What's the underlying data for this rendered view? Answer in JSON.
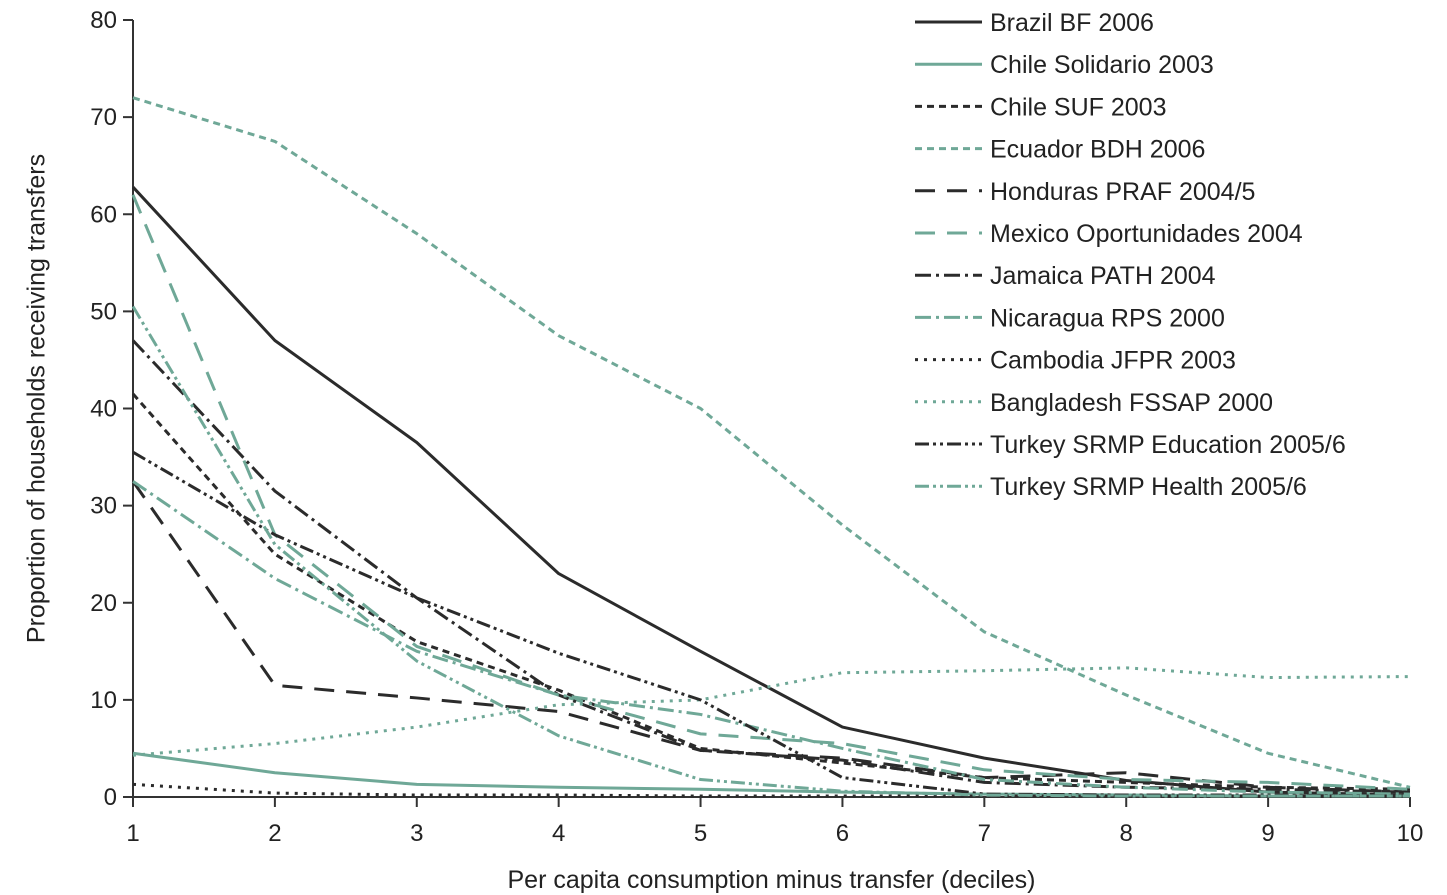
{
  "chart_data": {
    "type": "line",
    "xlabel": "Per capita consumption minus transfer (deciles)",
    "ylabel": "Proportion of households receiving transfers",
    "x": [
      1,
      2,
      3,
      4,
      5,
      6,
      7,
      8,
      9,
      10
    ],
    "xlim": [
      1,
      10
    ],
    "ylim": [
      0,
      80
    ],
    "yticks": [
      0,
      10,
      20,
      30,
      40,
      50,
      60,
      70,
      80
    ],
    "grid": false,
    "legend_position": "top-right",
    "series": [
      {
        "name": "Brazil BF 2006",
        "color": "#2b2b2b",
        "dash": "solid",
        "values": [
          62.8,
          47,
          36.5,
          23,
          15,
          7.2,
          4,
          1.7,
          0.5,
          0.2
        ]
      },
      {
        "name": "Chile Solidario 2003",
        "color": "#6fa897",
        "dash": "solid",
        "values": [
          4.5,
          2.5,
          1.3,
          1.0,
          0.8,
          0.5,
          0.3,
          0.2,
          0.1,
          0.1
        ]
      },
      {
        "name": "Chile SUF 2003",
        "color": "#2b2b2b",
        "dash": "shortdash",
        "values": [
          41.5,
          25,
          16,
          11,
          5,
          3.5,
          2,
          1.5,
          1.0,
          0.8
        ]
      },
      {
        "name": "Ecuador BDH 2006",
        "color": "#6fa897",
        "dash": "shortdash",
        "values": [
          72,
          67.5,
          58,
          47.5,
          40,
          28,
          17,
          10.5,
          4.5,
          1.0
        ]
      },
      {
        "name": "Honduras PRAF 2004/5",
        "color": "#2b2b2b",
        "dash": "longdash",
        "values": [
          32.5,
          11.5,
          10.2,
          8.8,
          4.8,
          4.0,
          2.0,
          2.5,
          1.0,
          0.5
        ]
      },
      {
        "name": "Mexico Oportunidades 2004",
        "color": "#6fa897",
        "dash": "longdash",
        "values": [
          62,
          27,
          15.5,
          10.5,
          6.5,
          5.5,
          2.8,
          1.8,
          1.5,
          0.8
        ]
      },
      {
        "name": "Jamaica PATH 2004",
        "color": "#2b2b2b",
        "dash": "dashdot",
        "values": [
          47,
          31.5,
          20.5,
          10.5,
          4.8,
          3.8,
          1.5,
          1.0,
          0.8,
          0.5
        ]
      },
      {
        "name": "Nicaragua RPS 2000",
        "color": "#6fa897",
        "dash": "dashdot",
        "values": [
          32.5,
          22.5,
          15,
          10.5,
          8.5,
          5.0,
          1.8,
          1.0,
          0.5,
          0.3
        ]
      },
      {
        "name": "Cambodia JFPR 2003",
        "color": "#2b2b2b",
        "dash": "dot",
        "values": [
          1.3,
          0.4,
          0.2,
          0.2,
          0.1,
          0.1,
          0.1,
          0.1,
          0.1,
          0.1
        ]
      },
      {
        "name": "Bangladesh FSSAP 2000",
        "color": "#6fa897",
        "dash": "dot",
        "values": [
          4.3,
          5.5,
          7.2,
          9.5,
          10,
          12.8,
          13,
          13.3,
          12.3,
          12.4
        ]
      },
      {
        "name": "Turkey SRMP Education 2005/6",
        "color": "#2b2b2b",
        "dash": "dashdotdot",
        "values": [
          35.5,
          27,
          20.5,
          14.8,
          10,
          2.0,
          0.3,
          0.2,
          0.2,
          0.1
        ]
      },
      {
        "name": "Turkey SRMP Health 2005/6",
        "color": "#6fa897",
        "dash": "dashdotdot",
        "values": [
          50.5,
          26,
          14,
          6.3,
          1.8,
          0.6,
          0.2,
          0.1,
          0.1,
          0.1
        ]
      }
    ]
  }
}
